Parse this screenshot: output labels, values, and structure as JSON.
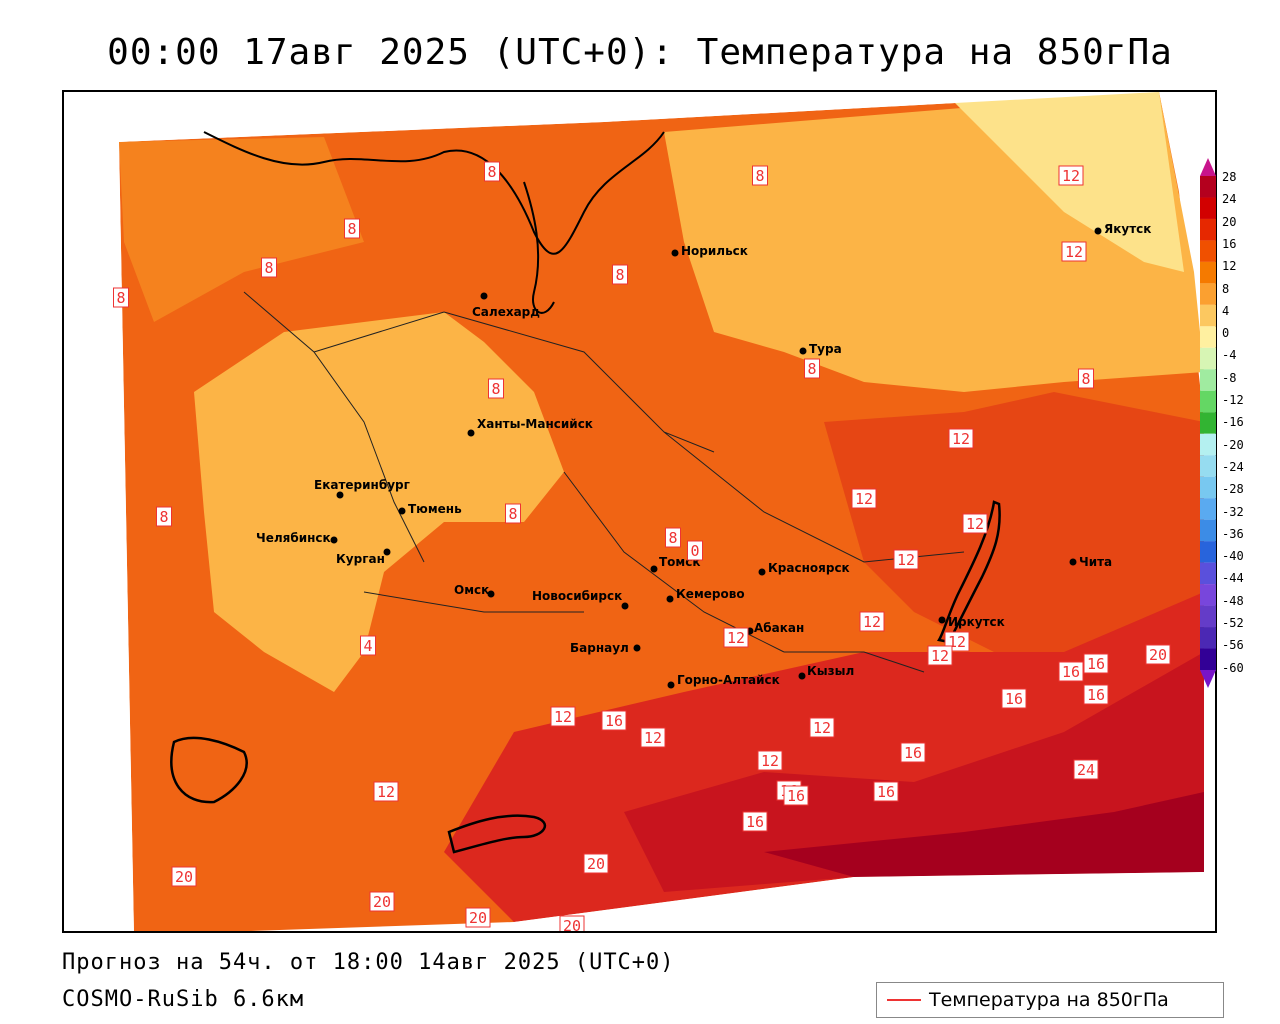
{
  "title": "00:00 17авг 2025 (UTC+0): Температура на 850гПа",
  "footer": {
    "forecast": "Прогноз на 54ч. от 18:00 14авг 2025 (UTC+0)",
    "model": "COSMO-RuSib 6.6км"
  },
  "legend": {
    "label": "Температура на 850гПа",
    "line_color": "#e33333"
  },
  "colorbar": {
    "labels": [
      "28",
      "24",
      "20",
      "16",
      "12",
      "8",
      "4",
      "0",
      "-4",
      "-8",
      "-12",
      "-16",
      "-20",
      "-24",
      "-28",
      "-32",
      "-36",
      "-40",
      "-44",
      "-48",
      "-52",
      "-56",
      "-60"
    ],
    "colors": [
      "#b4001e",
      "#d20000",
      "#e62800",
      "#f05000",
      "#f57a00",
      "#fba030",
      "#fcc860",
      "#fff0a0",
      "#d7f5b4",
      "#a0eba0",
      "#64d764",
      "#32b432",
      "#b4f0f0",
      "#96dcf0",
      "#78c8f0",
      "#5aaaf0",
      "#3c8ce6",
      "#2864dc",
      "#5a50dc",
      "#7846dc",
      "#643cc8",
      "#4b28b4",
      "#320096"
    ]
  },
  "cities": [
    {
      "name": "Норильск"
    },
    {
      "name": "Салехард"
    },
    {
      "name": "Тура"
    },
    {
      "name": "Якутск"
    },
    {
      "name": "Ханты-Мансийск"
    },
    {
      "name": "Екатеринбург"
    },
    {
      "name": "Тюмень"
    },
    {
      "name": "Челябинск"
    },
    {
      "name": "Курган"
    },
    {
      "name": "Омск"
    },
    {
      "name": "Новосибирск"
    },
    {
      "name": "Томск"
    },
    {
      "name": "Кемерово"
    },
    {
      "name": "Красноярск"
    },
    {
      "name": "Абакан"
    },
    {
      "name": "Барнаул"
    },
    {
      "name": "Горно-Алтайск"
    },
    {
      "name": "Кызыл"
    },
    {
      "name": "Иркутск"
    },
    {
      "name": "Чита"
    }
  ],
  "isotherm_labels": [
    "8",
    "8",
    "8",
    "8",
    "8",
    "8",
    "8",
    "8",
    "8",
    "8",
    "8",
    "8",
    "0",
    "4",
    "12",
    "12",
    "12",
    "12",
    "12",
    "12",
    "12",
    "12",
    "12",
    "12",
    "12",
    "12",
    "12",
    "12",
    "12",
    "16",
    "16",
    "16",
    "16",
    "16",
    "16",
    "16",
    "16",
    "16",
    "16",
    "20",
    "20",
    "20",
    "20",
    "20",
    "20",
    "24"
  ]
}
